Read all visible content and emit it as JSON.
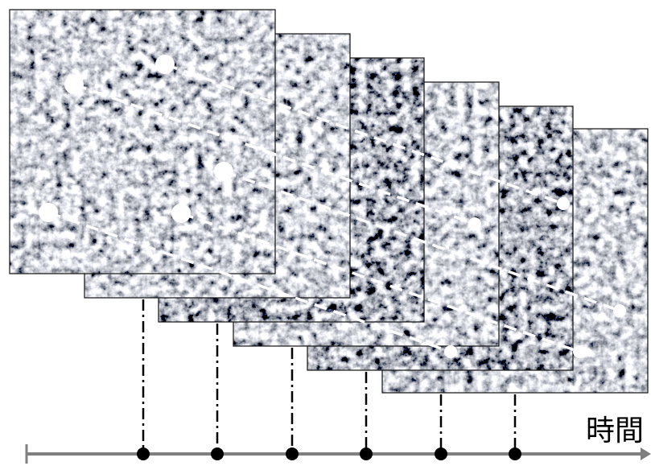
{
  "axis": {
    "label": "時間"
  }
}
